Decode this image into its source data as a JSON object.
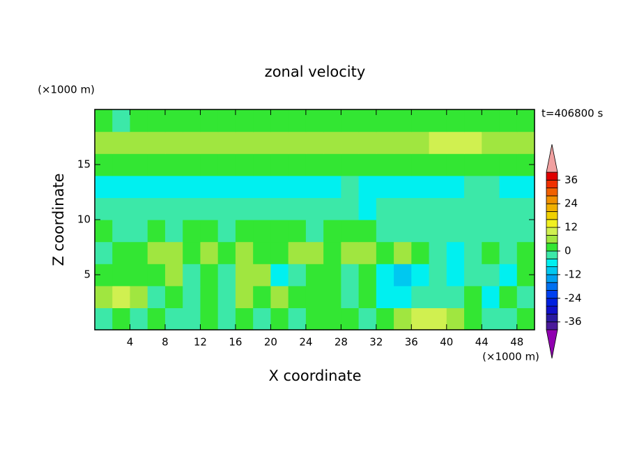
{
  "chart_data": {
    "type": "contour",
    "title": "zonal velocity",
    "x_label": "X coordinate",
    "y_label": "Z coordinate",
    "x_unit_label": "(×1000 m)",
    "y_unit_label": "(×1000 m)",
    "annotation": "t=406800 s",
    "x": [
      1,
      3,
      5,
      7,
      9,
      11,
      13,
      15,
      17,
      19,
      21,
      23,
      25,
      27,
      29,
      31,
      33,
      35,
      37,
      39,
      41,
      43,
      45,
      47,
      49
    ],
    "y": [
      1,
      3,
      5,
      7,
      9,
      11,
      13,
      15,
      17,
      19
    ],
    "values": [
      [
        -2,
        0,
        -2,
        2,
        -2,
        -2,
        2,
        -2,
        2,
        -2,
        2,
        -2,
        2,
        2,
        2,
        -2,
        2,
        6,
        10,
        10,
        6,
        2,
        -2,
        -2,
        2
      ],
      [
        6,
        10,
        6,
        -2,
        2,
        -2,
        2,
        -2,
        6,
        2,
        6,
        2,
        2,
        2,
        -2,
        2,
        -6,
        -6,
        -2,
        -2,
        -2,
        2,
        -6,
        2,
        -2
      ],
      [
        2,
        2,
        2,
        2,
        6,
        -2,
        2,
        -2,
        6,
        6,
        -6,
        -2,
        2,
        2,
        -2,
        2,
        -6,
        -10,
        -6,
        -2,
        -6,
        -2,
        -2,
        -6,
        2
      ],
      [
        -2,
        2,
        2,
        6,
        6,
        2,
        6,
        2,
        6,
        2,
        2,
        6,
        6,
        2,
        6,
        6,
        2,
        6,
        2,
        -2,
        -6,
        -2,
        2,
        -2,
        2
      ],
      [
        2,
        -2,
        -2,
        2,
        -2,
        2,
        2,
        -2,
        2,
        2,
        2,
        2,
        -2,
        2,
        2,
        2,
        -2,
        -2,
        -2,
        -2,
        -2,
        -2,
        -2,
        -2,
        -2
      ],
      [
        -2,
        -2,
        -2,
        -2,
        -2,
        -2,
        -2,
        -2,
        -2,
        -2,
        -2,
        -2,
        -2,
        -2,
        -2,
        -6,
        -2,
        -2,
        -2,
        -2,
        -2,
        -2,
        -2,
        -2,
        -2
      ],
      [
        -6,
        -6,
        -6,
        -6,
        -6,
        -6,
        -6,
        -6,
        -6,
        -6,
        -6,
        -6,
        -6,
        -6,
        -2,
        -6,
        -6,
        -6,
        -6,
        -6,
        -6,
        -2,
        -2,
        -6,
        -6
      ],
      [
        2,
        2,
        2,
        2,
        2,
        2,
        2,
        2,
        2,
        2,
        2,
        2,
        2,
        2,
        2,
        2,
        2,
        2,
        2,
        2,
        2,
        2,
        2,
        2,
        2
      ],
      [
        6,
        6,
        6,
        6,
        6,
        6,
        6,
        6,
        6,
        6,
        6,
        6,
        6,
        6,
        6,
        6,
        6,
        6,
        6,
        10,
        10,
        10,
        6,
        6,
        6
      ],
      [
        2,
        -2,
        2,
        2,
        2,
        2,
        2,
        2,
        2,
        2,
        2,
        2,
        2,
        2,
        2,
        2,
        2,
        2,
        2,
        2,
        2,
        2,
        2,
        2,
        2
      ]
    ],
    "xlim": [
      0,
      50
    ],
    "ylim": [
      0,
      20
    ],
    "xticks": [
      4,
      8,
      12,
      16,
      20,
      24,
      28,
      32,
      36,
      40,
      44,
      48
    ],
    "yticks": [
      5,
      10,
      15
    ],
    "levels": [
      -40,
      -36,
      -32,
      -28,
      -24,
      -20,
      -16,
      -12,
      -8,
      -4,
      0,
      4,
      8,
      12,
      16,
      20,
      24,
      28,
      32,
      36,
      40
    ],
    "colors": [
      "#4a1a9a",
      "#2a1aa0",
      "#1010c8",
      "#0020e0",
      "#0040f0",
      "#0070f0",
      "#00a0f0",
      "#00c8f0",
      "#00f0f0",
      "#3ce8a8",
      "#33e633",
      "#a0e640",
      "#d0f050",
      "#f0f020",
      "#f0d000",
      "#f0b000",
      "#f09000",
      "#f06000",
      "#f03000",
      "#e00000"
    ],
    "extend_colors": {
      "min": "#9000b0",
      "max": "#f0a0a0"
    },
    "colorbar_ticks": [
      -36,
      -24,
      -12,
      0,
      12,
      24,
      36
    ]
  }
}
